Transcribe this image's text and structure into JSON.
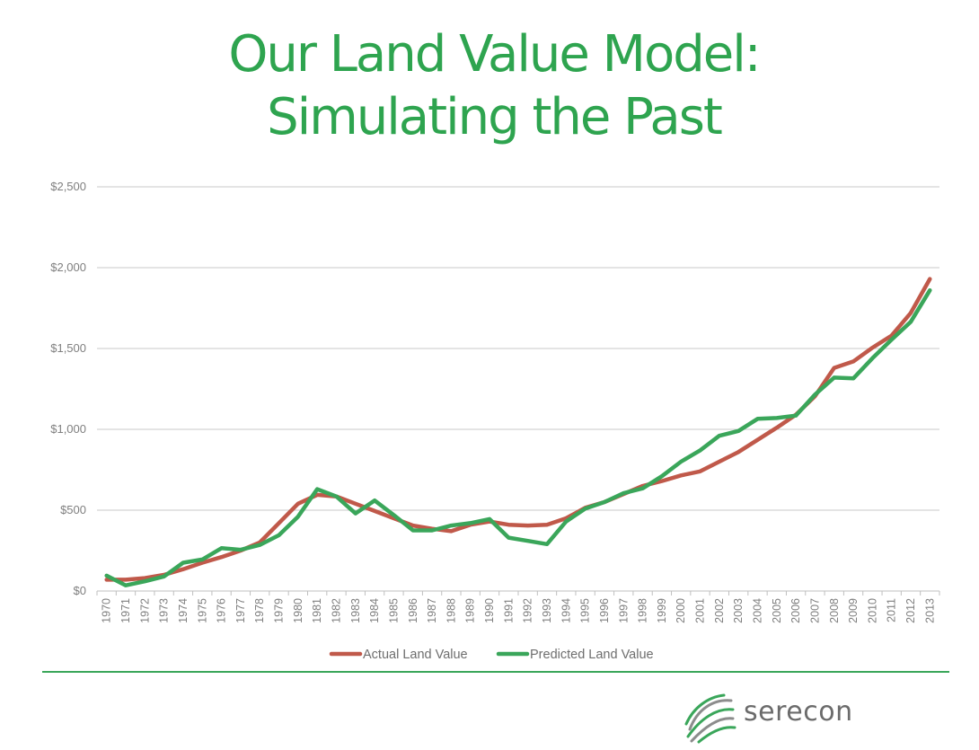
{
  "title_line1": "Our Land Value Model:",
  "title_line2": "Simulating the Past",
  "colors": {
    "title": "#2ea44f",
    "actual": "#c0594a",
    "predicted": "#3aa65a",
    "divider": "#3aa65a",
    "grid": "#c8c8c8",
    "axis_text": "#7f7f7f"
  },
  "logo_text": "serecon",
  "chart_data": {
    "type": "line",
    "title": "",
    "xlabel": "",
    "ylabel": "",
    "ylim": [
      0,
      2500
    ],
    "yticks": [
      0,
      500,
      1000,
      1500,
      2000,
      2500
    ],
    "ytick_labels": [
      "$0",
      "$500",
      "$1,000",
      "$1,500",
      "$2,000",
      "$2,500"
    ],
    "grid": true,
    "legend_position": "bottom",
    "categories": [
      "1970",
      "1971",
      "1972",
      "1973",
      "1974",
      "1975",
      "1976",
      "1977",
      "1978",
      "1979",
      "1980",
      "1981",
      "1982",
      "1983",
      "1984",
      "1985",
      "1986",
      "1987",
      "1988",
      "1989",
      "1990",
      "1991",
      "1992",
      "1993",
      "1994",
      "1995",
      "1996",
      "1997",
      "1998",
      "1999",
      "2000",
      "2001",
      "2002",
      "2003",
      "2004",
      "2005",
      "2006",
      "2007",
      "2008",
      "2009",
      "2010",
      "2011",
      "2012",
      "2013"
    ],
    "series": [
      {
        "name": "Actual Land Value",
        "values": [
          70,
          70,
          80,
          100,
          135,
          175,
          210,
          250,
          300,
          420,
          540,
          595,
          585,
          540,
          495,
          450,
          405,
          385,
          370,
          410,
          430,
          410,
          405,
          410,
          450,
          515,
          550,
          600,
          650,
          680,
          715,
          740,
          800,
          860,
          935,
          1010,
          1090,
          1205,
          1380,
          1420,
          1505,
          1580,
          1720,
          1930
        ]
      },
      {
        "name": "Predicted Land Value",
        "values": [
          95,
          35,
          60,
          90,
          175,
          195,
          265,
          255,
          285,
          345,
          460,
          630,
          585,
          480,
          560,
          470,
          375,
          375,
          405,
          420,
          445,
          330,
          310,
          290,
          430,
          510,
          550,
          605,
          635,
          710,
          800,
          870,
          960,
          990,
          1065,
          1070,
          1085,
          1215,
          1320,
          1315,
          1440,
          1555,
          1665,
          1860
        ]
      }
    ]
  }
}
